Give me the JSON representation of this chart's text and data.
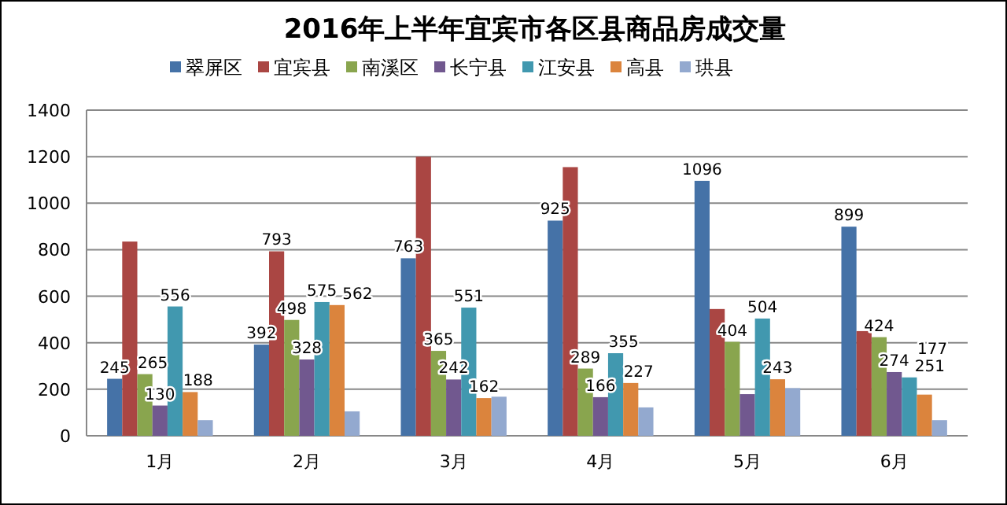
{
  "chart_data": {
    "type": "bar",
    "title": "2016年上半年宜宾市各区县商品房成交量",
    "categories": [
      "1月",
      "2月",
      "3月",
      "4月",
      "5月",
      "6月"
    ],
    "ylim": [
      0,
      1400
    ],
    "yticks": [
      0,
      200,
      400,
      600,
      800,
      1000,
      1200,
      1400
    ],
    "grid": "y",
    "legend": "top",
    "series": [
      {
        "name": "翠屏区",
        "color": "#4572a7",
        "values": [
          245,
          392,
          763,
          925,
          1096,
          899
        ],
        "value_labels": [
          "245",
          "392",
          "763",
          "925",
          "1096",
          "899"
        ]
      },
      {
        "name": "宜宾县",
        "color": "#aa4643",
        "values": [
          835,
          793,
          1200,
          1155,
          545,
          450
        ],
        "value_labels": [
          null,
          "793",
          null,
          null,
          null,
          null
        ]
      },
      {
        "name": "南溪区",
        "color": "#89a54e",
        "values": [
          265,
          498,
          365,
          289,
          404,
          424
        ],
        "value_labels": [
          "265",
          "498",
          "365",
          "289",
          "404",
          "424"
        ]
      },
      {
        "name": "长宁县",
        "color": "#71588f",
        "values": [
          130,
          328,
          242,
          166,
          179,
          274
        ],
        "value_labels": [
          "130",
          "328",
          "242",
          "166",
          null,
          "274"
        ]
      },
      {
        "name": "江安县",
        "color": "#4198af",
        "values": [
          556,
          575,
          551,
          355,
          504,
          251
        ],
        "value_labels": [
          "556",
          "575",
          "551",
          "355",
          "504",
          "251"
        ]
      },
      {
        "name": "高县",
        "color": "#db843d",
        "values": [
          188,
          562,
          162,
          227,
          243,
          177
        ],
        "value_labels": [
          "188",
          "562",
          "162",
          "227",
          "243",
          "177"
        ]
      },
      {
        "name": "珙县",
        "color": "#93a9cf",
        "values": [
          67,
          105,
          168,
          122,
          205,
          67
        ],
        "value_labels": [
          null,
          null,
          null,
          null,
          null,
          null
        ]
      }
    ]
  }
}
